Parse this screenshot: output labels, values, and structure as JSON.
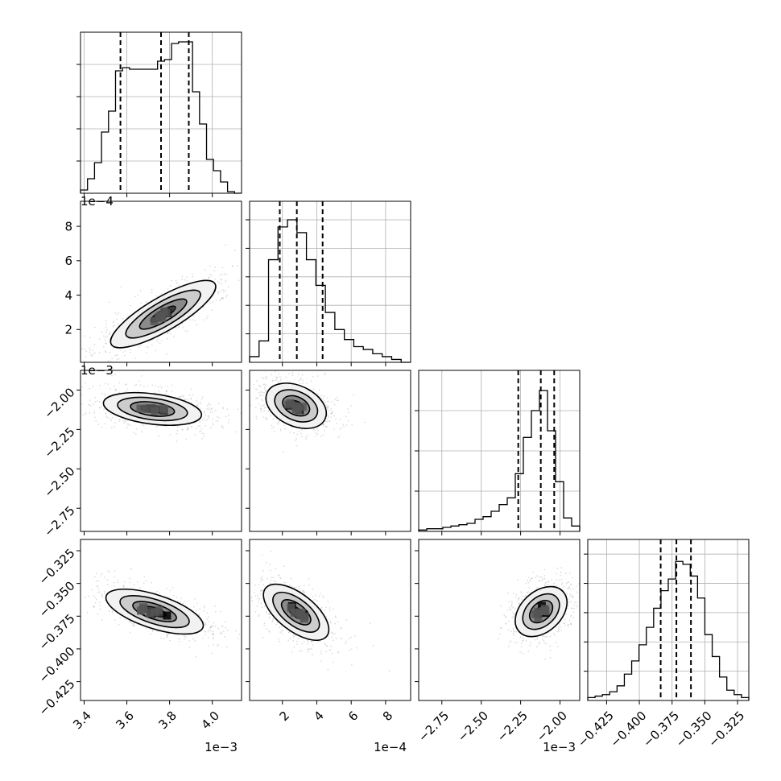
{
  "chart_data": {
    "type": "corner",
    "parameters": [
      {
        "ticks": [
          "3.4",
          "3.6",
          "3.8",
          "4.0"
        ],
        "tick_values": [
          0.0034,
          0.0036,
          0.0038,
          0.004
        ],
        "range": [
          0.003383,
          0.004137
        ],
        "offset_label": "1e−3"
      },
      {
        "ticks": [
          "2",
          "4",
          "6",
          "8"
        ],
        "tick_values": [
          0.0002,
          0.0004,
          0.0006,
          0.0008
        ],
        "range": [
          9.4e-06,
          0.0009456
        ],
        "offset_label": "1e−4"
      },
      {
        "ticks": [
          "−2.75",
          "−2.50",
          "−2.25",
          "−2.00"
        ],
        "tick_values": [
          -0.00275,
          -0.0025,
          -0.00225,
          -0.002
        ],
        "range": [
          -0.002897,
          -0.001875
        ],
        "offset_label": "1e−3"
      },
      {
        "ticks": [
          "−0.425",
          "−0.400",
          "−0.375",
          "−0.350",
          "−0.325"
        ],
        "tick_values": [
          -0.425,
          -0.4,
          -0.375,
          -0.35,
          -0.325
        ],
        "range": [
          -0.4394,
          -0.3164
        ],
        "offset_label": ""
      }
    ],
    "quantile_lines": [
      [
        0.00357,
        0.00376,
        0.00389
      ],
      [
        0.000185,
        0.000284,
        0.000434
      ],
      [
        -0.002265,
        -0.002122,
        -0.002037
      ],
      [
        -0.3837,
        -0.3717,
        -0.3606
      ]
    ],
    "histograms": [
      [
        2,
        9,
        19,
        38,
        51,
        76,
        78,
        77,
        77,
        77,
        77,
        82,
        83,
        93,
        94,
        94,
        63,
        43,
        21,
        14,
        7,
        1,
        0
      ],
      [
        4,
        15,
        72,
        95,
        100,
        91,
        72,
        54,
        35,
        23,
        16,
        11,
        9,
        6,
        4,
        2,
        0
      ],
      [
        1,
        2,
        2,
        3,
        4,
        5,
        6,
        9,
        11,
        15,
        20,
        25,
        43,
        70,
        90,
        105,
        75,
        37,
        10,
        4
      ],
      [
        2,
        3,
        4,
        6,
        10,
        18,
        27,
        38,
        50,
        63,
        75,
        83,
        95,
        93,
        85,
        70,
        45,
        30,
        16,
        7,
        4,
        2
      ]
    ],
    "hist_ymax": [
      100,
      113,
      120,
      110
    ],
    "contour_levels": [
      "0.5",
      "1.0",
      "1.5",
      "2.0"
    ],
    "pairs": [
      {
        "x": 0,
        "y": 1,
        "center": [
          0.00377,
          0.00029
        ]
      },
      {
        "x": 0,
        "y": 2,
        "center": [
          0.00372,
          -0.00212
        ]
      },
      {
        "x": 0,
        "y": 3,
        "center": [
          0.00373,
          -0.3715
        ]
      },
      {
        "x": 1,
        "y": 2,
        "center": [
          0.00028,
          -0.0021
        ]
      },
      {
        "x": 1,
        "y": 3,
        "center": [
          0.00028,
          -0.372
        ]
      },
      {
        "x": 2,
        "y": 3,
        "center": [
          -0.00212,
          -0.3715
        ]
      }
    ],
    "grid": true,
    "colors": {
      "line": "#000000",
      "grid": "#b0b0b0",
      "density": "#000000",
      "scatter": "#a0a0a0"
    }
  }
}
